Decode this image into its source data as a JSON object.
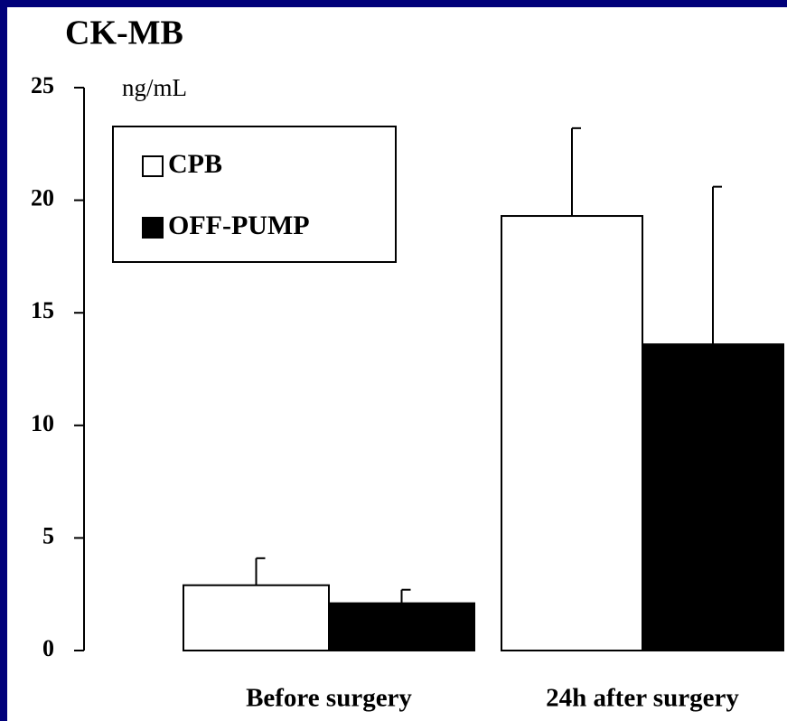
{
  "chart_data": {
    "type": "bar",
    "title": "CK-MB",
    "y_label": "ng/mL",
    "categories": [
      "Before surgery",
      "24h after surgery"
    ],
    "series": [
      {
        "name": "CPB",
        "color": "#ffffff",
        "values": [
          2.9,
          19.3
        ],
        "errors": [
          1.2,
          3.9
        ]
      },
      {
        "name": "OFF-PUMP",
        "color": "#000000",
        "values": [
          2.1,
          13.6
        ],
        "errors": [
          0.6,
          7.0
        ]
      }
    ],
    "ylim": [
      0,
      25
    ],
    "yticks": [
      0,
      5,
      10,
      15,
      20,
      25
    ],
    "legend": "upper left"
  }
}
